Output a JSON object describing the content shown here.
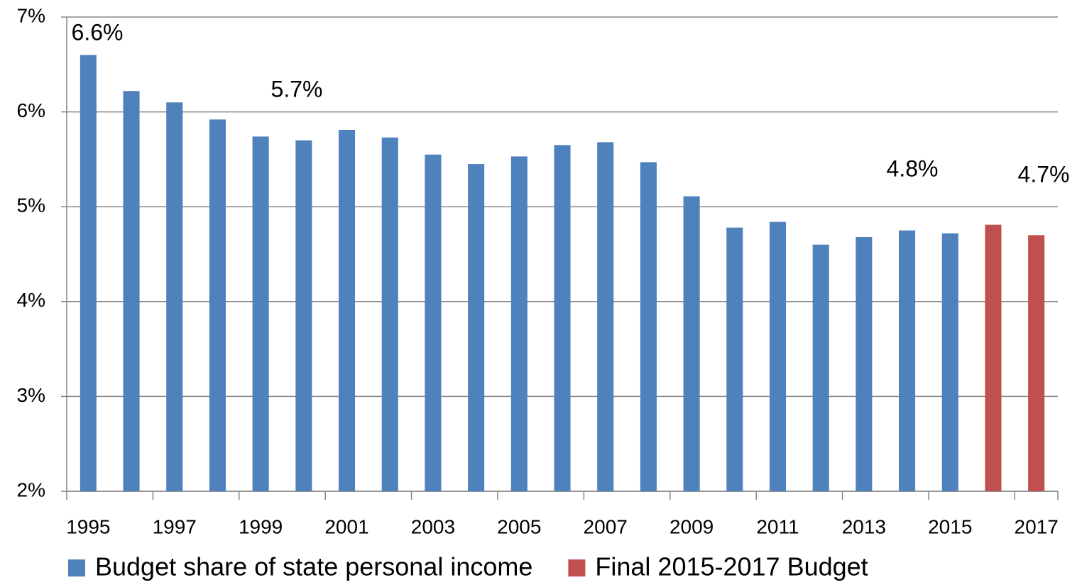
{
  "chart_data": {
    "type": "bar",
    "categories": [
      "1995",
      null,
      "1997",
      null,
      "1999",
      null,
      "2001",
      null,
      "2003",
      null,
      "2005",
      null,
      "2007",
      null,
      "2009",
      null,
      "2011",
      null,
      "2013",
      null,
      "2015",
      null,
      "2017"
    ],
    "series": [
      {
        "name": "Budget share of state personal income",
        "color": "#4f81bd",
        "values": [
          6.6,
          6.22,
          6.1,
          5.92,
          5.74,
          5.7,
          5.81,
          5.73,
          5.55,
          5.45,
          5.53,
          5.65,
          5.68,
          5.47,
          5.11,
          4.78,
          4.84,
          4.6,
          4.68,
          4.75,
          4.72,
          null,
          null
        ]
      },
      {
        "name": "Final 2015-2017 Budget",
        "color": "#c0504d",
        "values": [
          null,
          null,
          null,
          null,
          null,
          null,
          null,
          null,
          null,
          null,
          null,
          null,
          null,
          null,
          null,
          null,
          null,
          null,
          null,
          null,
          null,
          4.81,
          4.7
        ]
      }
    ],
    "annotations": [
      "6.6%",
      "5.7%",
      "4.8%",
      "4.7%"
    ],
    "ylim": [
      2,
      7
    ],
    "yticks": [
      {
        "value": 2,
        "label": "2%"
      },
      {
        "value": 3,
        "label": "3%"
      },
      {
        "value": 4,
        "label": "4%"
      },
      {
        "value": 5,
        "label": "5%"
      },
      {
        "value": 6,
        "label": "6%"
      },
      {
        "value": 7,
        "label": "7%"
      }
    ],
    "grid": true,
    "legend": "bottom"
  }
}
